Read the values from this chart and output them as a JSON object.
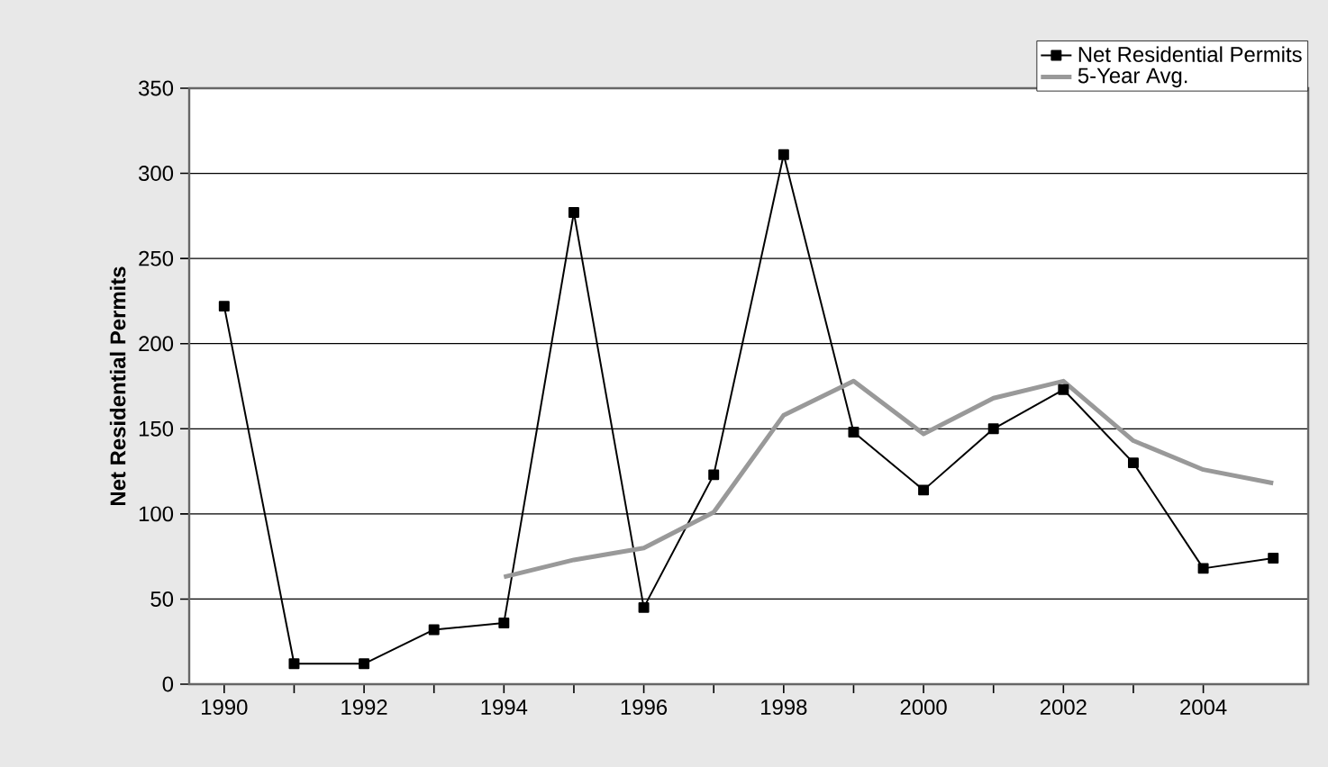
{
  "chart_data": {
    "type": "line",
    "ylabel": "Net Residential Permits",
    "x": [
      1990,
      1991,
      1992,
      1993,
      1994,
      1995,
      1996,
      1997,
      1998,
      1999,
      2000,
      2001,
      2002,
      2003,
      2004,
      2005
    ],
    "series": [
      {
        "name": "Net Residential Permits",
        "color": "#000000",
        "marker": "square",
        "values": [
          222,
          12,
          12,
          32,
          36,
          277,
          45,
          123,
          311,
          148,
          114,
          150,
          173,
          130,
          68,
          74
        ]
      },
      {
        "name": "5-Year Avg.",
        "color": "#999999",
        "marker": "none",
        "values": [
          null,
          null,
          null,
          null,
          63,
          73,
          80,
          101,
          158,
          178,
          147,
          168,
          178,
          143,
          126,
          118
        ]
      }
    ],
    "xlim": [
      1989.5,
      2005.5
    ],
    "xticks": [
      1990,
      1992,
      1994,
      1996,
      1998,
      2000,
      2002,
      2004
    ],
    "ylim": [
      0,
      350
    ],
    "yticks": [
      0,
      50,
      100,
      150,
      200,
      250,
      300,
      350
    ],
    "grid": "y",
    "legend": "top right"
  }
}
